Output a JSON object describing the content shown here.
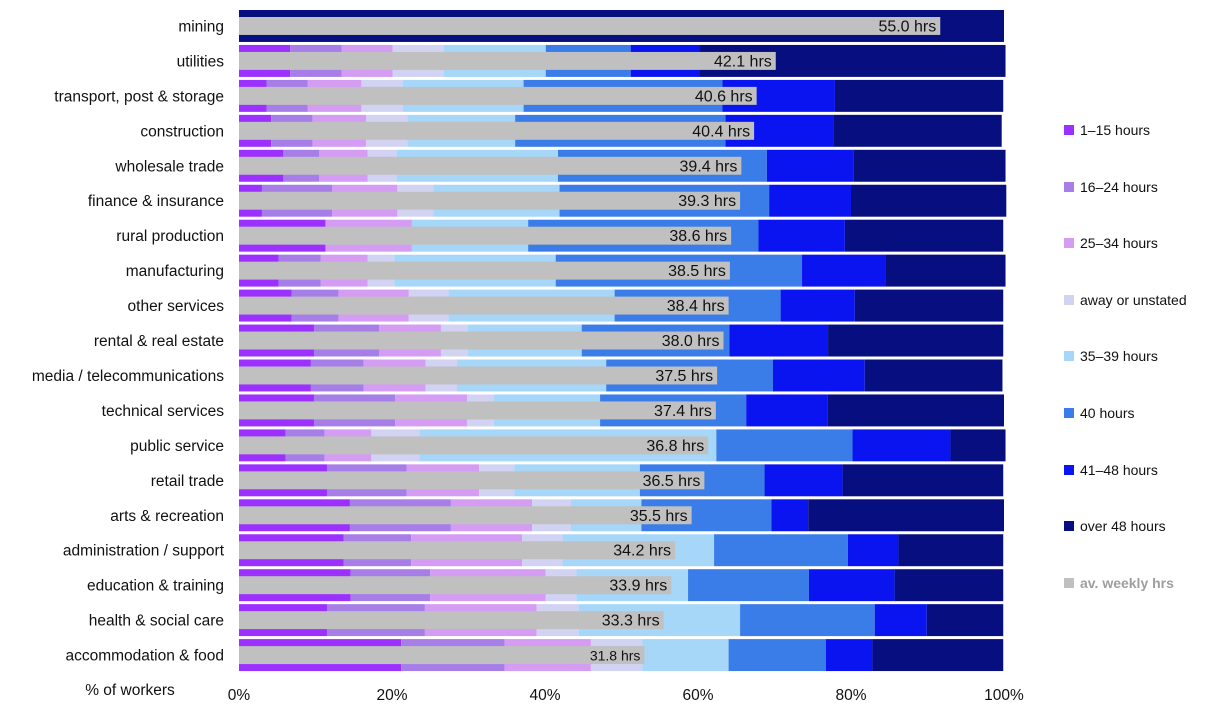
{
  "chart_data": {
    "type": "bar",
    "stacked": true,
    "orientation": "horizontal",
    "xlabel": "% of workers",
    "xlim": [
      0,
      100
    ],
    "x_ticks": [
      "0%",
      "20%",
      "40%",
      "60%",
      "80%",
      "100%"
    ],
    "legend_position": "right",
    "categories": [
      "mining",
      "utilities",
      "transport, post & storage",
      "construction",
      "wholesale trade",
      "finance & insurance",
      "rural production",
      "manufacturing",
      "other services",
      "rental & real estate",
      "media / telecommunications",
      "technical services",
      "public service",
      "retail trade",
      "arts & recreation",
      "administration / support",
      "education & training",
      "health & social care",
      "accommodation & food"
    ],
    "series": [
      {
        "name": "1–15 hours",
        "color": "#9b30ff",
        "values": [
          0,
          6.7,
          3.6,
          4.2,
          5.8,
          3.0,
          11.3,
          5.2,
          6.9,
          9.8,
          9.4,
          9.8,
          6.1,
          11.5,
          14.5,
          13.7,
          14.6,
          11.5,
          21.2
        ]
      },
      {
        "name": "16–24 hours",
        "color": "#a77ee8",
        "values": [
          0,
          6.7,
          5.4,
          5.4,
          4.7,
          9.2,
          0,
          5.5,
          6.1,
          8.5,
          6.9,
          10.6,
          5.1,
          10.4,
          13.2,
          8.8,
          10.4,
          12.8,
          13.5
        ]
      },
      {
        "name": "25–34 hours",
        "color": "#d49cf2",
        "values": [
          0,
          6.7,
          7.0,
          7.0,
          6.3,
          8.5,
          11.3,
          6.1,
          9.2,
          8.1,
          8.1,
          9.4,
          6.1,
          9.5,
          10.6,
          14.5,
          15.1,
          14.6,
          11.3
        ]
      },
      {
        "name": "away or unstated",
        "color": "#d2d2f2",
        "values": [
          0,
          6.7,
          5.4,
          5.4,
          3.8,
          4.7,
          0,
          3.5,
          5.2,
          3.5,
          4.1,
          3.5,
          6.3,
          4.6,
          5.1,
          5.3,
          4.0,
          5.5,
          6.7
        ]
      },
      {
        "name": "35–39 hours",
        "color": "#a6d6f8",
        "values": [
          0,
          13.3,
          15.8,
          14.1,
          21.1,
          16.5,
          15.2,
          21.1,
          21.7,
          14.9,
          19.5,
          13.9,
          38.8,
          16.4,
          9.2,
          19.8,
          14.6,
          21.1,
          11.3
        ]
      },
      {
        "name": "40 hours",
        "color": "#3a7de8",
        "values": [
          0,
          11.1,
          26.0,
          27.5,
          27.3,
          27.4,
          30.1,
          32.2,
          21.7,
          19.3,
          21.8,
          19.1,
          17.8,
          16.3,
          17.0,
          17.5,
          15.8,
          17.6,
          12.7
        ]
      },
      {
        "name": "41–48 hours",
        "color": "#0a14f0",
        "values": [
          0,
          9.0,
          14.7,
          14.1,
          11.3,
          10.7,
          11.3,
          10.9,
          9.7,
          12.9,
          12.0,
          10.6,
          12.8,
          10.2,
          4.8,
          6.6,
          11.2,
          6.8,
          6.1
        ]
      },
      {
        "name": "over 48 hours",
        "color": "#070f80",
        "values": [
          100,
          40.0,
          22.0,
          22.0,
          19.9,
          20.3,
          20.7,
          15.7,
          19.4,
          22.9,
          18.0,
          23.1,
          7.2,
          21.0,
          25.6,
          13.7,
          14.2,
          10.0,
          17.1
        ]
      }
    ],
    "average": {
      "name": "av. weekly hrs",
      "color": "#c0c0c0",
      "labels": [
        "55.0 hrs",
        "42.1 hrs",
        "40.6 hrs",
        "40.4 hrs",
        "39.4 hrs",
        "39.3 hrs",
        "38.6 hrs",
        "38.5 hrs",
        "38.4 hrs",
        "38.0 hrs",
        "37.5 hrs",
        "37.4 hrs",
        "36.8 hrs",
        "36.5 hrs",
        "35.5 hrs",
        "34.2 hrs",
        "33.9 hrs",
        "33.3 hrs",
        "31.8 hrs"
      ],
      "values": [
        55.0,
        42.1,
        40.6,
        40.4,
        39.4,
        39.3,
        38.6,
        38.5,
        38.4,
        38.0,
        37.5,
        37.4,
        36.8,
        36.5,
        35.5,
        34.2,
        33.9,
        33.3,
        31.8
      ]
    }
  }
}
